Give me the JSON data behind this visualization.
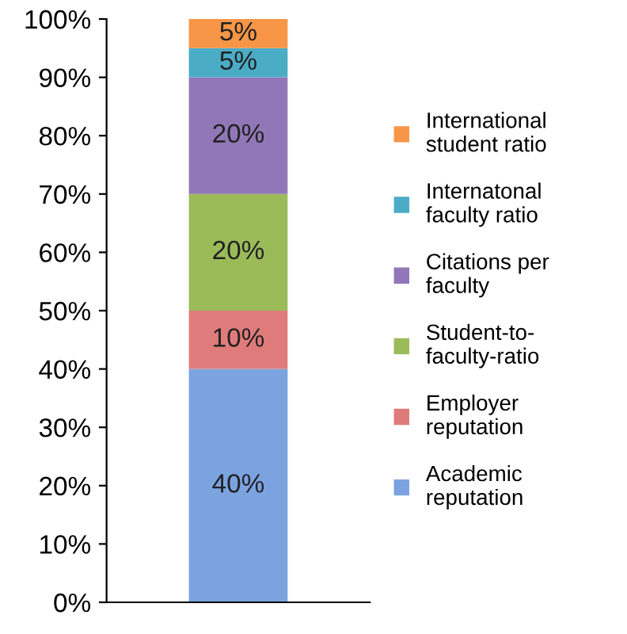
{
  "chart_data": {
    "type": "bar",
    "stacked": true,
    "categories": [
      null
    ],
    "series": [
      {
        "name": "Academic\nreputation",
        "color": "#7ba3e0",
        "values": [
          40
        ],
        "value_labels": [
          "40%"
        ]
      },
      {
        "name": "Employer\nreputation",
        "color": "#e07b7b",
        "values": [
          10
        ],
        "value_labels": [
          "10%"
        ]
      },
      {
        "name": "Student-to-\nfaculty-ratio",
        "color": "#9bbb59",
        "values": [
          20
        ],
        "value_labels": [
          "20%"
        ]
      },
      {
        "name": "Citations per\nfaculty",
        "color": "#9277b8",
        "values": [
          20
        ],
        "value_labels": [
          "20%"
        ]
      },
      {
        "name": "Internatonal\nfaculty ratio",
        "color": "#4bacc6",
        "values": [
          5
        ],
        "value_labels": [
          "5%"
        ]
      },
      {
        "name": "International\nstudent ratio",
        "color": "#f79646",
        "values": [
          5
        ],
        "value_labels": [
          "5%"
        ]
      }
    ],
    "ylim": [
      0,
      100
    ],
    "yticks": [
      {
        "value": 0,
        "label": "0%"
      },
      {
        "value": 10,
        "label": "10%"
      },
      {
        "value": 20,
        "label": "20%"
      },
      {
        "value": 30,
        "label": "30%"
      },
      {
        "value": 40,
        "label": "40%"
      },
      {
        "value": 50,
        "label": "50%"
      },
      {
        "value": 60,
        "label": "60%"
      },
      {
        "value": 70,
        "label": "70%"
      },
      {
        "value": 80,
        "label": "80%"
      },
      {
        "value": 90,
        "label": "90%"
      },
      {
        "value": 100,
        "label": "100%"
      }
    ],
    "legend": "right",
    "grid": false
  }
}
